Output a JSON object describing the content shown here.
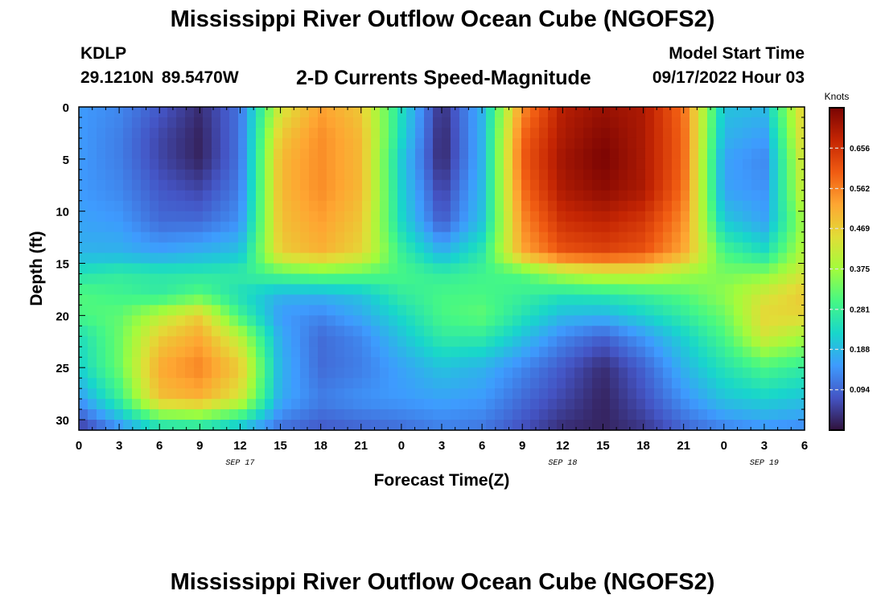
{
  "header": {
    "title": "Mississippi River Outflow Ocean Cube (NGOFS2)",
    "station": "KDLP",
    "coords": "29.1210N 89.5470W",
    "variable": "2-D Currents Speed-Magnitude",
    "model_label": "Model Start Time",
    "model_value": "09/17/2022 Hour 03",
    "second_title": "Mississippi River Outflow Ocean Cube (NGOFS2)"
  },
  "chart_data": {
    "type": "heatmap",
    "xlabel": "Forecast Time(Z)",
    "ylabel": "Depth (ft)",
    "colorbar_label": "Knots",
    "x_range_hours": [
      0,
      54
    ],
    "y_range_ft": [
      0,
      31
    ],
    "x_tick_labels": [
      "0",
      "3",
      "6",
      "9",
      "12",
      "15",
      "18",
      "21",
      "0",
      "3",
      "6",
      "9",
      "12",
      "15",
      "18",
      "21",
      "0",
      "3",
      "6"
    ],
    "y_ticks": [
      0,
      5,
      10,
      15,
      20,
      25,
      30
    ],
    "date_labels": [
      {
        "text": "SEP 17",
        "hour": 12
      },
      {
        "text": "SEP 18",
        "hour": 36
      },
      {
        "text": "SEP 19",
        "hour": 51
      }
    ],
    "colorbar_ticks": [
      0.094,
      0.188,
      0.281,
      0.375,
      0.469,
      0.562,
      0.656
    ],
    "colorbar_range": [
      0,
      0.75
    ],
    "colors": [
      "#30123b",
      "#4454c4",
      "#3e9bfe",
      "#18d6cb",
      "#46f884",
      "#a2fc3c",
      "#e1dd37",
      "#fea632",
      "#f05b12",
      "#c42503",
      "#7a0403"
    ],
    "grid_times_hours": [
      0,
      3,
      6,
      9,
      12,
      15,
      18,
      21,
      24,
      27,
      30,
      33,
      36,
      39,
      42,
      45,
      48,
      51,
      54
    ],
    "grid_depths_ft": [
      0,
      3,
      5,
      8,
      11,
      14,
      16,
      18,
      20,
      22,
      25,
      28,
      31
    ],
    "speed_knots": [
      [
        0.15,
        0.13,
        0.08,
        0.03,
        0.11,
        0.43,
        0.53,
        0.48,
        0.24,
        0.03,
        0.18,
        0.55,
        0.69,
        0.72,
        0.7,
        0.58,
        0.2,
        0.19,
        0.48
      ],
      [
        0.15,
        0.12,
        0.06,
        0.02,
        0.11,
        0.48,
        0.55,
        0.5,
        0.23,
        0.02,
        0.18,
        0.59,
        0.7,
        0.74,
        0.7,
        0.59,
        0.18,
        0.15,
        0.47
      ],
      [
        0.15,
        0.12,
        0.06,
        0.02,
        0.11,
        0.5,
        0.55,
        0.5,
        0.21,
        0.02,
        0.18,
        0.6,
        0.71,
        0.75,
        0.7,
        0.59,
        0.16,
        0.13,
        0.45
      ],
      [
        0.15,
        0.13,
        0.08,
        0.06,
        0.12,
        0.5,
        0.55,
        0.5,
        0.22,
        0.05,
        0.19,
        0.58,
        0.7,
        0.73,
        0.7,
        0.58,
        0.16,
        0.14,
        0.43
      ],
      [
        0.16,
        0.15,
        0.1,
        0.1,
        0.14,
        0.49,
        0.53,
        0.48,
        0.23,
        0.08,
        0.2,
        0.55,
        0.66,
        0.68,
        0.65,
        0.55,
        0.21,
        0.16,
        0.38
      ],
      [
        0.18,
        0.18,
        0.16,
        0.18,
        0.2,
        0.47,
        0.51,
        0.46,
        0.28,
        0.18,
        0.26,
        0.52,
        0.61,
        0.63,
        0.61,
        0.52,
        0.3,
        0.24,
        0.4
      ],
      [
        0.25,
        0.27,
        0.26,
        0.26,
        0.27,
        0.31,
        0.33,
        0.32,
        0.3,
        0.27,
        0.29,
        0.31,
        0.39,
        0.42,
        0.42,
        0.38,
        0.34,
        0.35,
        0.43
      ],
      [
        0.31,
        0.29,
        0.27,
        0.31,
        0.24,
        0.18,
        0.18,
        0.2,
        0.27,
        0.3,
        0.3,
        0.28,
        0.25,
        0.26,
        0.28,
        0.31,
        0.36,
        0.43,
        0.48
      ],
      [
        0.3,
        0.32,
        0.4,
        0.47,
        0.29,
        0.15,
        0.13,
        0.17,
        0.23,
        0.3,
        0.32,
        0.25,
        0.19,
        0.18,
        0.22,
        0.27,
        0.33,
        0.46,
        0.46
      ],
      [
        0.24,
        0.33,
        0.47,
        0.52,
        0.4,
        0.17,
        0.1,
        0.13,
        0.2,
        0.27,
        0.27,
        0.2,
        0.13,
        0.09,
        0.15,
        0.22,
        0.3,
        0.43,
        0.38
      ],
      [
        0.22,
        0.33,
        0.52,
        0.56,
        0.48,
        0.18,
        0.1,
        0.12,
        0.16,
        0.2,
        0.18,
        0.13,
        0.08,
        0.03,
        0.09,
        0.18,
        0.25,
        0.3,
        0.27
      ],
      [
        0.15,
        0.28,
        0.49,
        0.51,
        0.43,
        0.17,
        0.12,
        0.14,
        0.15,
        0.16,
        0.15,
        0.1,
        0.06,
        0.02,
        0.07,
        0.14,
        0.2,
        0.22,
        0.2
      ],
      [
        0.04,
        0.13,
        0.22,
        0.23,
        0.18,
        0.1,
        0.08,
        0.09,
        0.1,
        0.12,
        0.11,
        0.07,
        0.03,
        0.02,
        0.04,
        0.09,
        0.12,
        0.14,
        0.13
      ]
    ]
  }
}
